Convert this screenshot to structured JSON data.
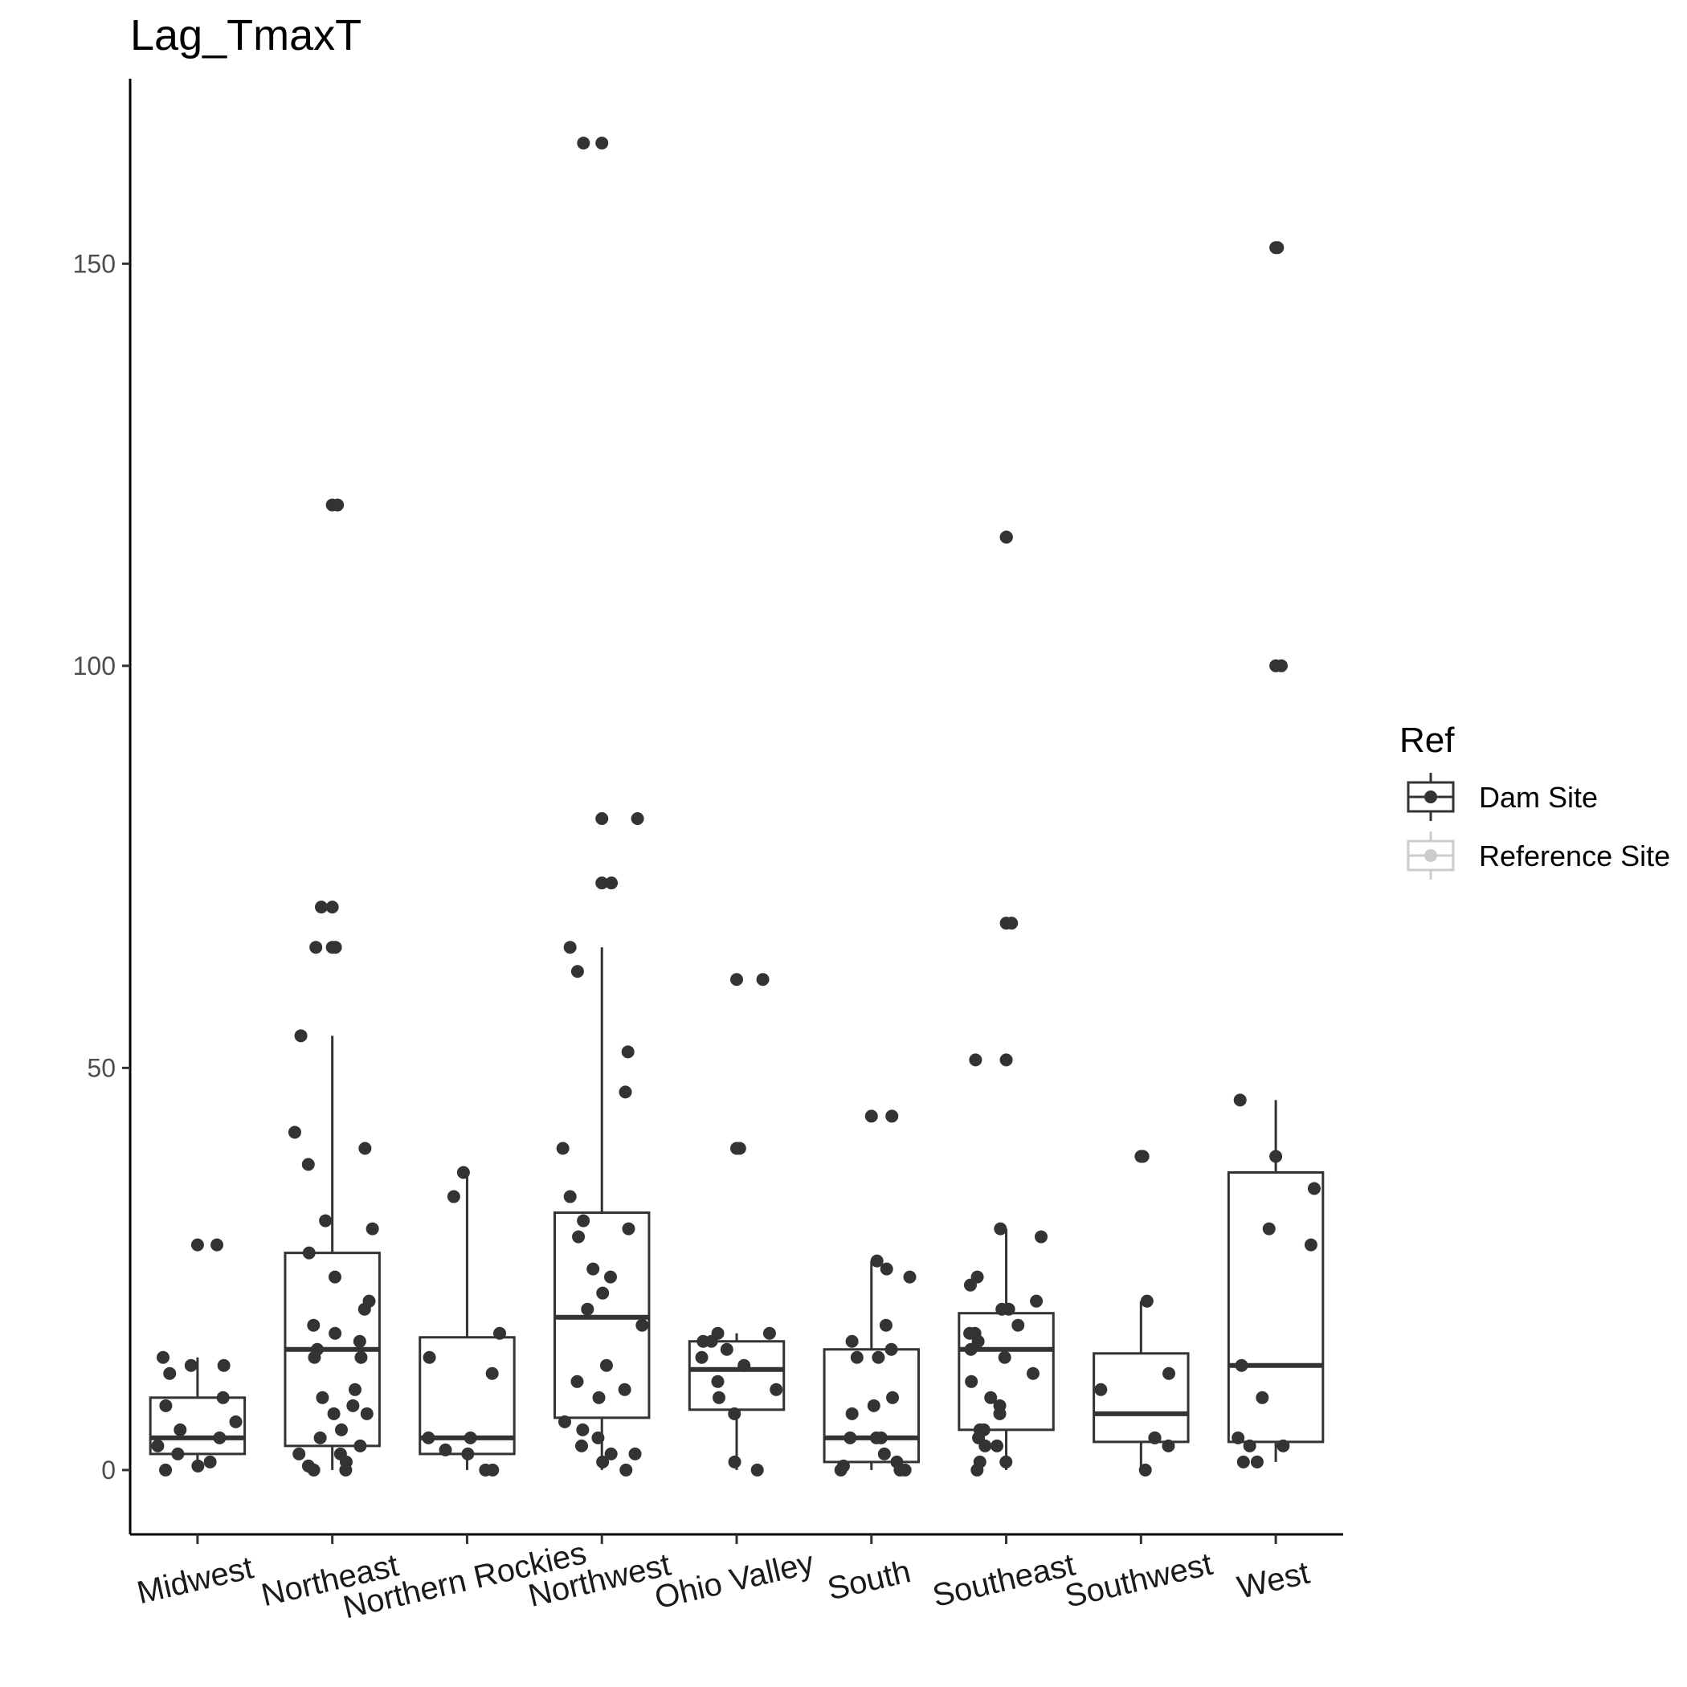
{
  "chart_data": {
    "type": "box",
    "title": "Lag_TmaxT",
    "xlabel": "",
    "ylabel": "",
    "ylim": [
      -8,
      173
    ],
    "yticks": [
      0,
      50,
      100,
      150
    ],
    "grid": false,
    "legend": {
      "title": "Ref",
      "placement": "right",
      "entries": [
        {
          "label": "Dam Site",
          "color": "#333333"
        },
        {
          "label": "Reference Site",
          "color": "#cccccc"
        }
      ]
    },
    "categories": [
      "Midwest",
      "Northeast",
      "Northern Rockies",
      "Northwest",
      "Ohio Valley",
      "South",
      "Southeast",
      "Southwest",
      "West"
    ],
    "series": [
      {
        "name": "Dam Site",
        "color": "#333333",
        "boxes": [
          {
            "whisker_low": 0,
            "q1": 2,
            "median": 4,
            "q3": 9,
            "whisker_high": 14
          },
          {
            "whisker_low": 0,
            "q1": 3,
            "median": 15,
            "q3": 27,
            "whisker_high": 54
          },
          {
            "whisker_low": 0,
            "q1": 2,
            "median": 4,
            "q3": 16.5,
            "whisker_high": 37
          },
          {
            "whisker_low": 0,
            "q1": 6.5,
            "median": 19,
            "q3": 32,
            "whisker_high": 65
          },
          {
            "whisker_low": 0,
            "q1": 7.5,
            "median": 12.5,
            "q3": 16,
            "whisker_high": 17
          },
          {
            "whisker_low": 0,
            "q1": 1,
            "median": 4,
            "q3": 15,
            "whisker_high": 26
          },
          {
            "whisker_low": 0,
            "q1": 5,
            "median": 15,
            "q3": 19.5,
            "whisker_high": 30
          },
          {
            "whisker_low": 0,
            "q1": 3.5,
            "median": 7,
            "q3": 14.5,
            "whisker_high": 21
          },
          {
            "whisker_low": 1,
            "q1": 3.5,
            "median": 13,
            "q3": 37,
            "whisker_high": 46
          }
        ],
        "outliers": [
          [
            28
          ],
          [
            120,
            70,
            65
          ],
          [],
          [
            165,
            81,
            73
          ],
          [
            61,
            40
          ],
          [
            44
          ],
          [
            116,
            68,
            51
          ],
          [
            39
          ],
          [
            152,
            100
          ]
        ],
        "points": [
          [
            28,
            14,
            13,
            13,
            12,
            9,
            8,
            6,
            5,
            4,
            3,
            2,
            1,
            0.5,
            0
          ],
          [
            120,
            70,
            65,
            65,
            54,
            42,
            40,
            38,
            31,
            30,
            27,
            24,
            21,
            20,
            18,
            17,
            16,
            15,
            14,
            14,
            10,
            9,
            8,
            7,
            7,
            5,
            4,
            3,
            2,
            2,
            1,
            0.5,
            0,
            0
          ],
          [
            37,
            34,
            17,
            14,
            12,
            4,
            4,
            2.5,
            2,
            0,
            0
          ],
          [
            165,
            81,
            73,
            65,
            62,
            52,
            47,
            40,
            34,
            31,
            30,
            29,
            25,
            24,
            22,
            20,
            18,
            13,
            11,
            10,
            9,
            6,
            5,
            4,
            3,
            2,
            2,
            1,
            0
          ],
          [
            61,
            40,
            17,
            17,
            16,
            16,
            15,
            14,
            13,
            11,
            10,
            9,
            7,
            1,
            0
          ],
          [
            44,
            26,
            25,
            24,
            18,
            16,
            15,
            14,
            14,
            9,
            8,
            7,
            4,
            4,
            4,
            2,
            1,
            0.5,
            0,
            0,
            0
          ],
          [
            116,
            68,
            51,
            30,
            29,
            24,
            23,
            21,
            20,
            20,
            18,
            17,
            17,
            16,
            15,
            14,
            12,
            11,
            9,
            8,
            7,
            5,
            5,
            4,
            3,
            3,
            1,
            1,
            0
          ],
          [
            39,
            21,
            12,
            10,
            4,
            4,
            3,
            0
          ],
          [
            152,
            100,
            46,
            39,
            35,
            30,
            28,
            13,
            9,
            4,
            3,
            3,
            1,
            1
          ]
        ]
      },
      {
        "name": "Reference Site",
        "color": "#cccccc",
        "boxes": [],
        "outliers": [],
        "points": []
      }
    ]
  }
}
